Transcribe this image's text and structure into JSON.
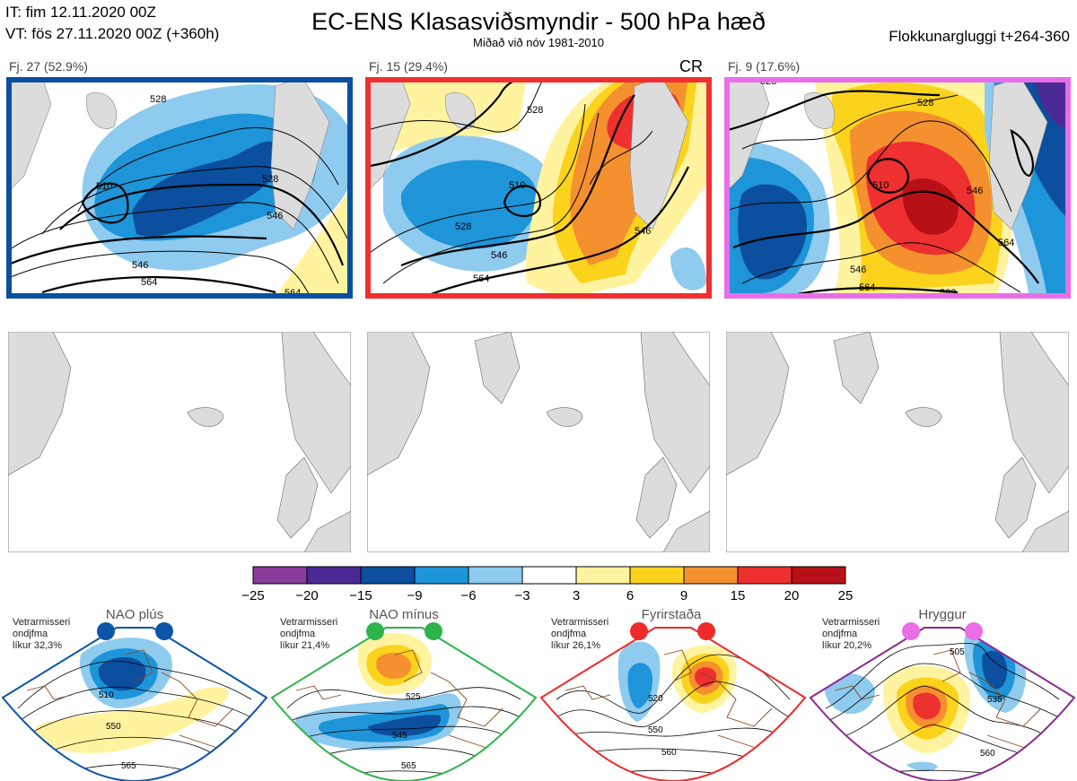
{
  "header": {
    "it": "IT: fim 12.11.2020 00Z",
    "vt": "VT: fös 27.11.2020 00Z  (+360h)",
    "title": "EC-ENS Klasasviðsmyndir - 500 hPa hæð",
    "subtitle": "Miðað við nóv 1981-2010",
    "window": "Flokkunargluggi t+264-360"
  },
  "clusters": [
    {
      "label": "Fj. 27 (52.9%)",
      "border_color": "#0a4fa0",
      "contours": [
        "510",
        "528",
        "528",
        "546",
        "546",
        "564",
        "564"
      ]
    },
    {
      "label": "Fj. 15 (29.4%)",
      "border_color": "#ee3030",
      "extra": "CR",
      "contours": [
        "510",
        "528",
        "528",
        "546",
        "546",
        "564"
      ]
    },
    {
      "label": "Fj. 9 (17.6%)",
      "border_color": "#e86ee8",
      "contours": [
        "510",
        "528",
        "528",
        "546",
        "546",
        "564",
        "564",
        "582"
      ]
    }
  ],
  "colorbar": {
    "labels": [
      "−25",
      "−20",
      "−15",
      "−9",
      "−6",
      "−3",
      "3",
      "6",
      "9",
      "15",
      "20",
      "25"
    ],
    "colors": [
      "#8a3c9b",
      "#4b2a96",
      "#0b4f9e",
      "#1e94d9",
      "#8ecbee",
      "#ffffff",
      "#fff3a0",
      "#fbd31d",
      "#f5902e",
      "#ee3030",
      "#b81017"
    ]
  },
  "regimes": [
    {
      "name": "NAO plús",
      "line1": "Vetrarmisseri",
      "line2": "ondjfma",
      "line3": "líkur 32,3%",
      "dot_color": "#0d55a8",
      "border_color": "#0d55a8",
      "contours": [
        "510",
        "550",
        "565"
      ]
    },
    {
      "name": "NAO mínus",
      "line1": "Vetrarmisseri",
      "line2": "ondjfma",
      "line3": "líkur 21,4%",
      "dot_color": "#2db34a",
      "border_color": "#2db34a",
      "contours": [
        "525",
        "545",
        "565"
      ]
    },
    {
      "name": "Fyrirstaða",
      "line1": "Vetrarmisseri",
      "line2": "ondjfma",
      "line3": "líkur 26,1%",
      "dot_color": "#ee2a2a",
      "border_color": "#ee2a2a",
      "contours": [
        "520",
        "550",
        "560"
      ]
    },
    {
      "name": "Hryggur",
      "line1": "Vetrarmisseri",
      "line2": "ondjfma",
      "line3": "líkur 20,2%",
      "dot_color": "#ea6ee8",
      "border_color": "#8b2a8f",
      "contours": [
        "505",
        "535",
        "560"
      ]
    }
  ]
}
